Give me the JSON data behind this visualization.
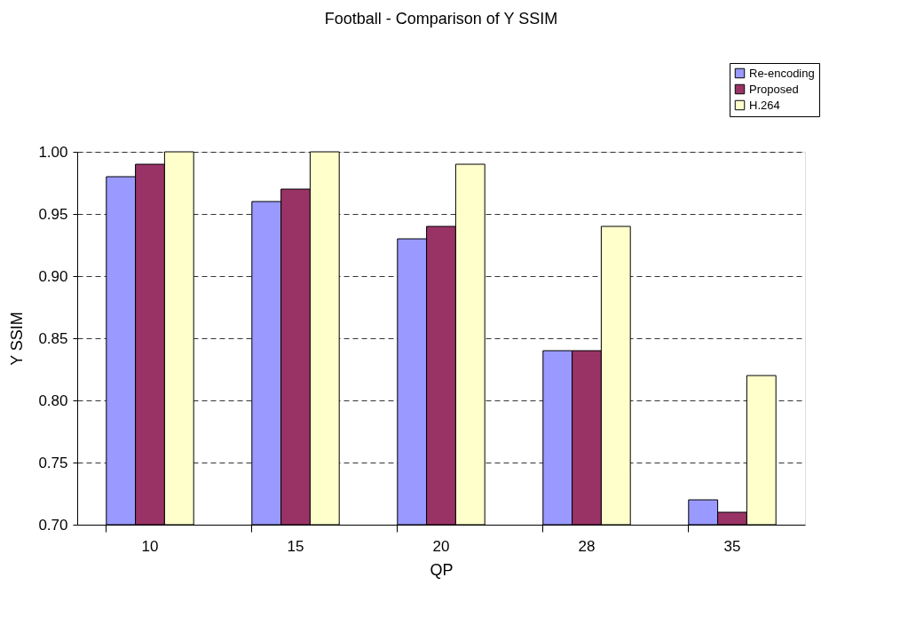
{
  "chart_data": {
    "type": "bar",
    "title": "Football - Comparison of Y SSIM",
    "xlabel": "QP",
    "ylabel": "Y SSIM",
    "categories": [
      "10",
      "15",
      "20",
      "28",
      "35"
    ],
    "series": [
      {
        "name": "Re-encoding",
        "color": "#9999ff",
        "values": [
          0.98,
          0.96,
          0.93,
          0.84,
          0.72
        ]
      },
      {
        "name": "Proposed",
        "color": "#993366",
        "values": [
          0.99,
          0.97,
          0.94,
          0.84,
          0.71
        ]
      },
      {
        "name": "H.264",
        "color": "#ffffcc",
        "values": [
          1.0,
          1.0,
          0.99,
          0.94,
          0.82
        ]
      }
    ],
    "ylim": [
      0.7,
      1.0
    ],
    "yticks": [
      {
        "value": 0.7,
        "label": "0.70"
      },
      0.75,
      {
        "value": 0.8,
        "label": "0.80"
      },
      0.85,
      {
        "value": 0.9,
        "label": "0.90"
      },
      0.95,
      {
        "value": 1,
        "label": "1.00"
      }
    ],
    "grid": "y",
    "legend": "top right"
  }
}
